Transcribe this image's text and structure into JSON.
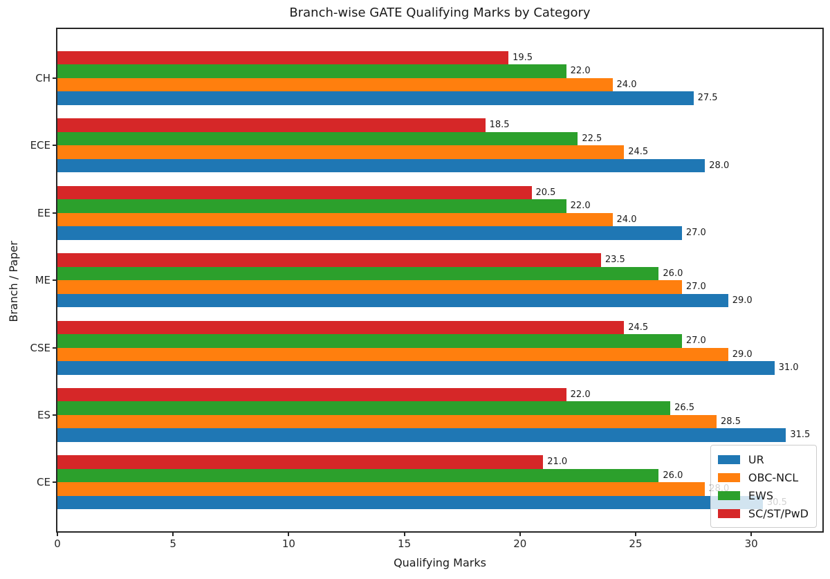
{
  "chart_data": {
    "type": "bar",
    "orientation": "horizontal",
    "title": "Branch-wise GATE Qualifying Marks by Category",
    "xlabel": "Qualifying Marks",
    "ylabel": "Branch / Paper",
    "categories": [
      "CH",
      "ECE",
      "EE",
      "ME",
      "CSE",
      "ES",
      "CE"
    ],
    "categories_note": "listed top to bottom as displayed",
    "group_order_top_to_bottom": [
      "SC/ST/PwD",
      "EWS",
      "OBC-NCL",
      "UR"
    ],
    "series": [
      {
        "name": "UR",
        "color": "#1f77b4",
        "values": [
          27.5,
          28.0,
          27.0,
          29.0,
          31.0,
          31.5,
          30.5
        ]
      },
      {
        "name": "OBC-NCL",
        "color": "#ff7f0e",
        "values": [
          24.0,
          24.5,
          24.0,
          27.0,
          29.0,
          28.5,
          28.0
        ]
      },
      {
        "name": "EWS",
        "color": "#2ca02c",
        "values": [
          22.0,
          22.5,
          22.0,
          26.0,
          27.0,
          26.5,
          26.0
        ]
      },
      {
        "name": "SC/ST/PwD",
        "color": "#d62728",
        "values": [
          19.5,
          18.5,
          20.5,
          23.5,
          24.5,
          22.0,
          21.0
        ]
      }
    ],
    "xticks": [
      0,
      5,
      10,
      15,
      20,
      25,
      30
    ],
    "xlim": [
      0,
      33.075
    ],
    "bar_labels": true,
    "value_label_decimals": 1,
    "legend": {
      "location": "lower right",
      "entries": [
        "UR",
        "OBC-NCL",
        "EWS",
        "SC/ST/PwD"
      ]
    },
    "grid": false
  }
}
